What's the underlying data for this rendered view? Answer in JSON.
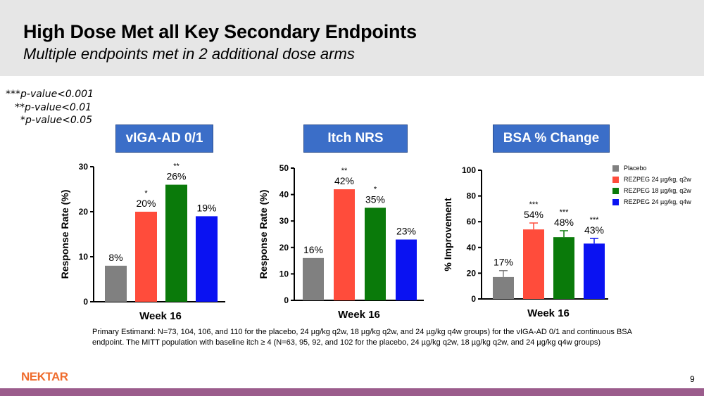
{
  "header": {
    "title": "High Dose Met all Key Secondary Endpoints",
    "subtitle": "Multiple endpoints met in 2 additional dose arms"
  },
  "pvalues": [
    "***p-value<0.001",
    "**p-value<0.01",
    "*p-value<0.05"
  ],
  "colors": {
    "placebo": "#808080",
    "q2w_24": "#ff4c3b",
    "q2w_18": "#0a7a0a",
    "q4w_24": "#0a12f2",
    "title_bg": "#3b6ec8"
  },
  "legend": [
    {
      "label": "Placebo",
      "color": "#808080"
    },
    {
      "label": "REZPEG 24 µg/kg, q2w",
      "color": "#ff4c3b"
    },
    {
      "label": "REZPEG 18 µg/kg, q2w",
      "color": "#0a7a0a"
    },
    {
      "label": "REZPEG 24 µg/kg, q4w",
      "color": "#0a12f2"
    }
  ],
  "chart_data": [
    {
      "type": "bar",
      "title": "vIGA-AD 0/1",
      "ylabel": "Response Rate (%)",
      "xlabel": "Week 16",
      "ylim": [
        0,
        30
      ],
      "yticks": [
        0,
        10,
        20,
        30
      ],
      "categories": [
        "Placebo",
        "REZPEG 24 µg/kg, q2w",
        "REZPEG 18 µg/kg, q2w",
        "REZPEG 24 µg/kg, q4w"
      ],
      "values": [
        8,
        20,
        26,
        19
      ],
      "labels": [
        "8%",
        "20%",
        "26%",
        "19%"
      ],
      "stars": [
        "",
        "*",
        "**",
        ""
      ]
    },
    {
      "type": "bar",
      "title": "Itch NRS",
      "ylabel": "Response Rate (%)",
      "xlabel": "Week 16",
      "ylim": [
        0,
        50
      ],
      "yticks": [
        0,
        10,
        20,
        30,
        40,
        50
      ],
      "categories": [
        "Placebo",
        "REZPEG 24 µg/kg, q2w",
        "REZPEG 18 µg/kg, q2w",
        "REZPEG 24 µg/kg, q4w"
      ],
      "values": [
        16,
        42,
        35,
        23
      ],
      "labels": [
        "16%",
        "42%",
        "35%",
        "23%"
      ],
      "stars": [
        "",
        "**",
        "*",
        ""
      ]
    },
    {
      "type": "bar",
      "title": "BSA % Change",
      "ylabel": "% Improvement",
      "xlabel": "Week 16",
      "ylim": [
        0,
        100
      ],
      "yticks": [
        0,
        20,
        40,
        60,
        80,
        100
      ],
      "categories": [
        "Placebo",
        "REZPEG 24 µg/kg, q2w",
        "REZPEG 18 µg/kg, q2w",
        "REZPEG 24 µg/kg, q4w"
      ],
      "values": [
        17,
        54,
        48,
        43
      ],
      "errors": [
        5,
        5,
        5,
        4
      ],
      "labels": [
        "17%",
        "54%",
        "48%",
        "43%"
      ],
      "stars": [
        "",
        "***",
        "***",
        "***"
      ]
    }
  ],
  "footnote": "Primary Estimand: N=73, 104, 106, and 110 for the placebo, 24 µg/kg q2w, 18 µg/kg q2w, and 24 µg/kg q4w groups) for the vIGA-AD 0/1 and continuous BSA endpoint. The MITT population with baseline itch ≥ 4 (N=63, 95, 92, and 102 for the placebo, 24 µg/kg q2w, 18 µg/kg q2w, and 24 µg/kg q4w groups)",
  "logo": "NEKTAR",
  "page_number": "9"
}
